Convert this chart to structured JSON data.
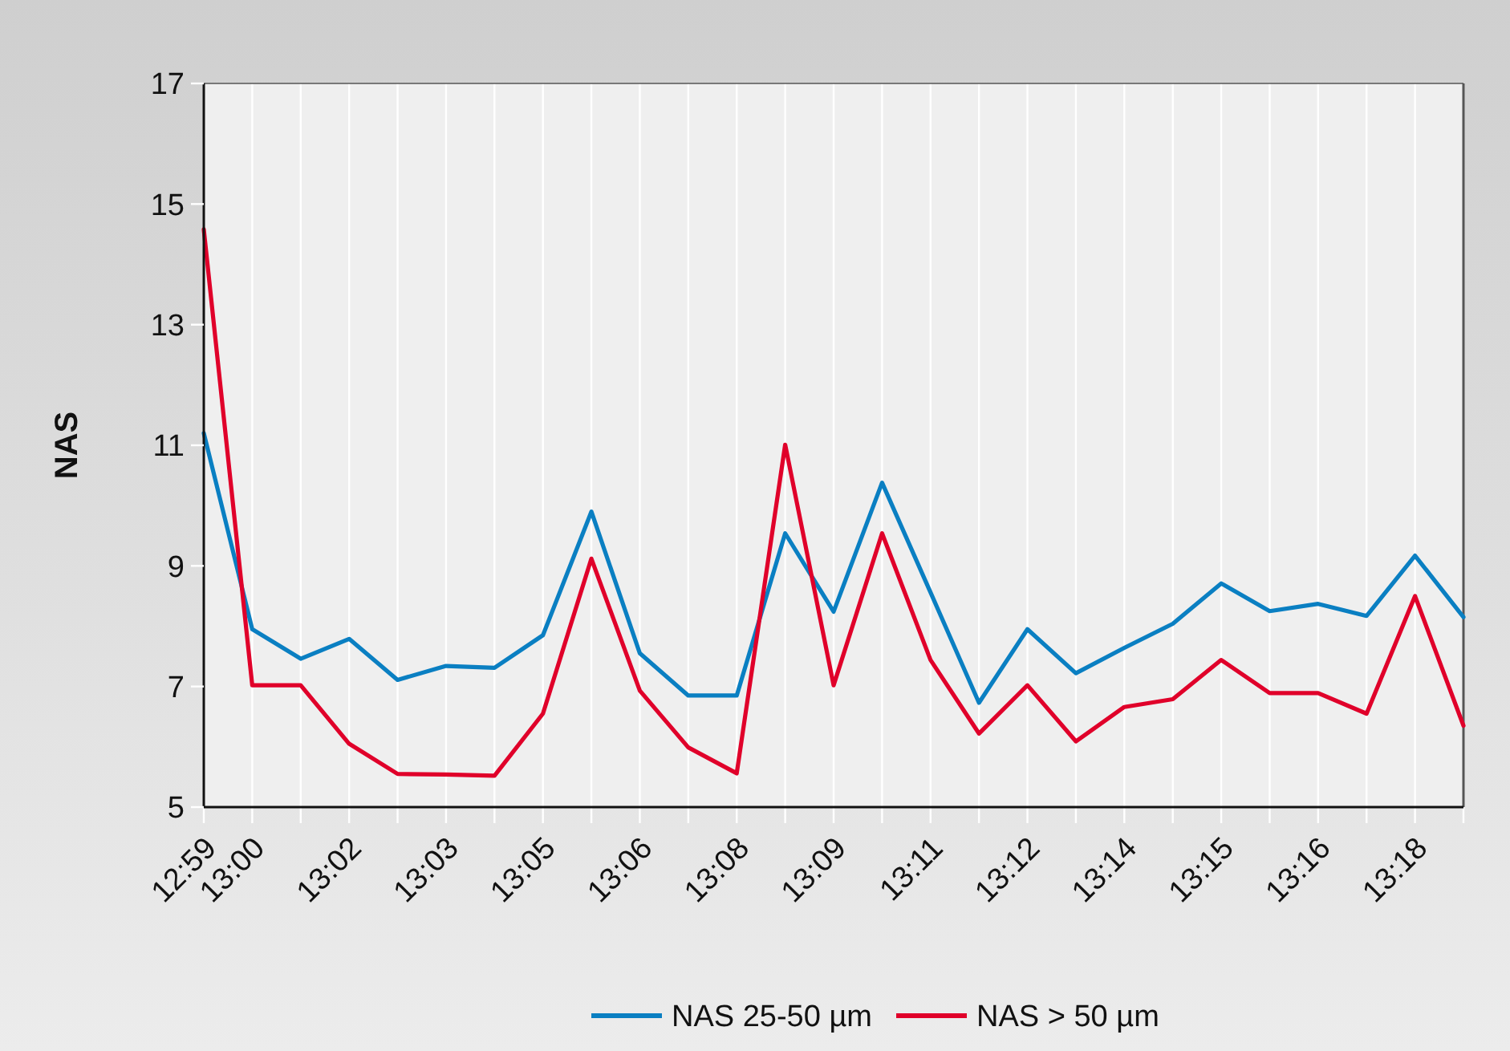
{
  "chart_data": {
    "type": "line",
    "ylabel": "NAS",
    "categories": [
      "12:59",
      "13:00",
      null,
      "13:02",
      null,
      "13:03",
      null,
      "13:05",
      null,
      "13:06",
      null,
      "13:08",
      null,
      "13:09",
      null,
      "13:11",
      null,
      "13:12",
      null,
      "13:14",
      null,
      "13:15",
      null,
      "13:16",
      null,
      "13:18",
      null
    ],
    "series": [
      {
        "name": "NAS 25-50 µm",
        "color": "#0a7fc2",
        "values": [
          11.2,
          7.95,
          7.46,
          7.79,
          7.11,
          7.34,
          7.31,
          7.85,
          9.9,
          7.55,
          6.85,
          6.85,
          9.54,
          8.24,
          10.38,
          8.56,
          6.73,
          7.95,
          7.22,
          7.64,
          8.04,
          8.71,
          8.25,
          8.37,
          8.17,
          9.17,
          8.15
        ]
      },
      {
        "name": "NAS > 50 µm",
        "color": "#e0002a",
        "values": [
          14.58,
          7.02,
          7.02,
          6.05,
          5.55,
          5.54,
          5.52,
          6.55,
          9.12,
          6.93,
          5.99,
          5.56,
          11.01,
          7.02,
          9.54,
          7.44,
          6.22,
          7.02,
          6.09,
          6.66,
          6.79,
          7.44,
          6.89,
          6.89,
          6.55,
          8.5,
          6.35
        ]
      }
    ],
    "ylim": [
      5,
      17
    ],
    "yticks": [
      5,
      7,
      9,
      11,
      13,
      15,
      17
    ],
    "grid": "x",
    "legend": "bottom",
    "marker": "none",
    "line_style": "solid"
  }
}
